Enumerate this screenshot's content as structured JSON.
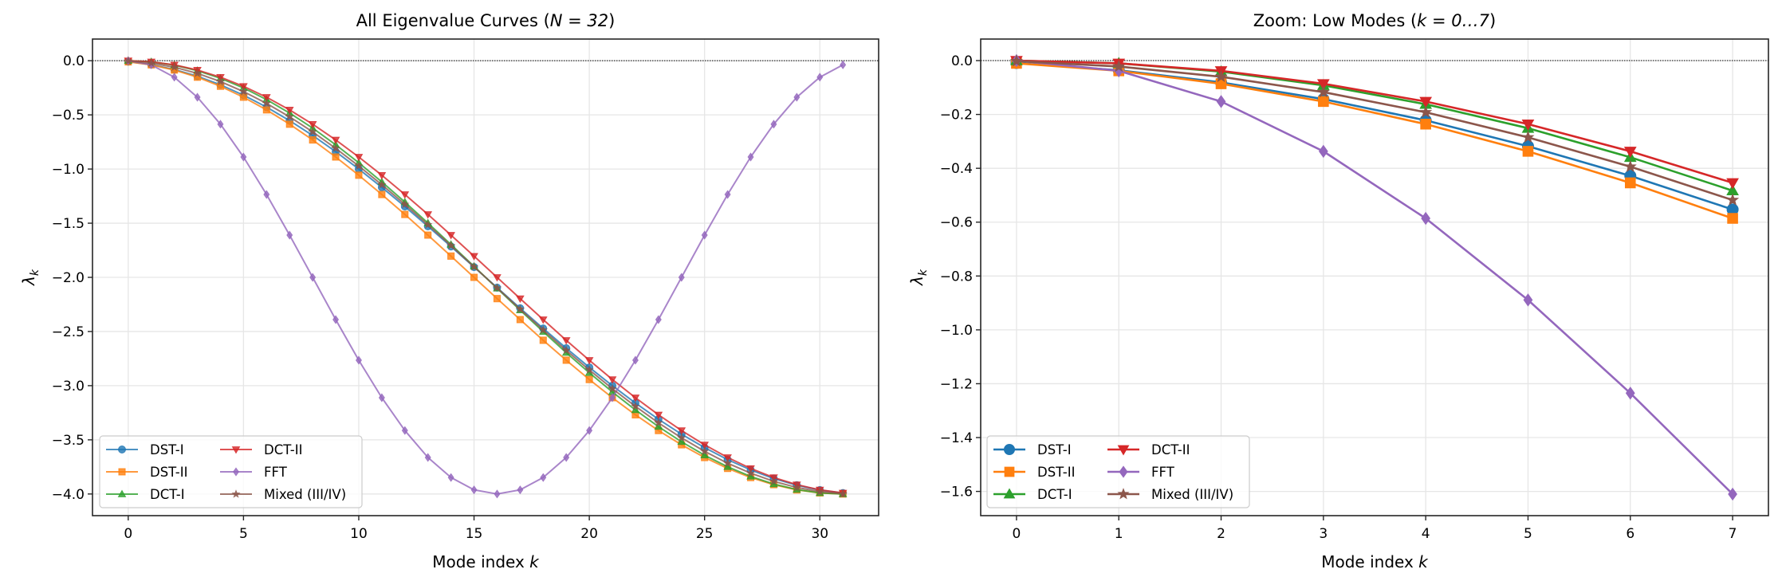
{
  "chart_data": [
    {
      "type": "line",
      "title_text": "All Eigenvalue Curves (",
      "title_math": "N = 32",
      "title_end": ")",
      "xlabel": "Mode index",
      "xlabel_var": "k",
      "ylabel": "λ",
      "ylabel_sub": "k",
      "xlim": [
        -1.55,
        32.55
      ],
      "ylim": [
        -4.2,
        0.2
      ],
      "xticks": [
        0,
        5,
        10,
        15,
        20,
        25,
        30
      ],
      "yticks": [
        0.0,
        -0.5,
        -1.0,
        -1.5,
        -2.0,
        -2.5,
        -3.0,
        -3.5,
        -4.0
      ],
      "grid": true,
      "reference_line_y": 0,
      "legend_position": "lower-left",
      "legend_columns": 2,
      "x": [
        0,
        1,
        2,
        3,
        4,
        5,
        6,
        7,
        8,
        9,
        10,
        11,
        12,
        13,
        14,
        15,
        16,
        17,
        18,
        19,
        20,
        21,
        22,
        23,
        24,
        25,
        26,
        27,
        28,
        29,
        30,
        31
      ],
      "series": [
        {
          "name": "DST-I",
          "color": "#1f77b4",
          "marker": "circle",
          "values": [
            -0.009,
            -0.036,
            -0.081,
            -0.143,
            -0.222,
            -0.318,
            -0.428,
            -0.553,
            -0.69,
            -0.84,
            -1.0,
            -1.169,
            -1.346,
            -1.529,
            -1.715,
            -1.905,
            -2.095,
            -2.285,
            -2.472,
            -2.654,
            -2.831,
            -3.0,
            -3.16,
            -3.31,
            -3.448,
            -3.572,
            -3.683,
            -3.778,
            -3.857,
            -3.919,
            -3.964,
            -3.991
          ]
        },
        {
          "name": "DST-II",
          "color": "#ff7f0e",
          "marker": "square",
          "values": [
            -0.01,
            -0.038,
            -0.086,
            -0.152,
            -0.236,
            -0.337,
            -0.454,
            -0.586,
            -0.731,
            -0.889,
            -1.057,
            -1.235,
            -1.419,
            -1.61,
            -1.804,
            -2.0,
            -2.196,
            -2.39,
            -2.581,
            -2.765,
            -2.943,
            -3.111,
            -3.269,
            -3.414,
            -3.546,
            -3.663,
            -3.764,
            -3.848,
            -3.914,
            -3.962,
            -3.99,
            -4.0
          ]
        },
        {
          "name": "DCT-I",
          "color": "#2ca02c",
          "marker": "triangle-up",
          "values": [
            0.0,
            -0.01,
            -0.041,
            -0.092,
            -0.162,
            -0.251,
            -0.359,
            -0.483,
            -0.622,
            -0.776,
            -0.942,
            -1.119,
            -1.305,
            -1.499,
            -1.697,
            -1.899,
            -2.101,
            -2.303,
            -2.501,
            -2.695,
            -2.881,
            -3.058,
            -3.224,
            -3.378,
            -3.518,
            -3.642,
            -3.749,
            -3.838,
            -3.908,
            -3.959,
            -3.99,
            -4.0
          ]
        },
        {
          "name": "DCT-II",
          "color": "#d62728",
          "marker": "triangle-down",
          "values": [
            0.0,
            -0.01,
            -0.038,
            -0.086,
            -0.152,
            -0.236,
            -0.337,
            -0.454,
            -0.586,
            -0.731,
            -0.889,
            -1.057,
            -1.235,
            -1.419,
            -1.61,
            -1.804,
            -2.0,
            -2.196,
            -2.39,
            -2.581,
            -2.765,
            -2.943,
            -3.111,
            -3.269,
            -3.414,
            -3.546,
            -3.663,
            -3.764,
            -3.848,
            -3.914,
            -3.962,
            -3.99
          ]
        },
        {
          "name": "FFT",
          "color": "#9467bd",
          "marker": "diamond",
          "values": [
            0.0,
            -0.038,
            -0.152,
            -0.337,
            -0.586,
            -0.889,
            -1.235,
            -1.61,
            -2.0,
            -2.39,
            -2.765,
            -3.111,
            -3.414,
            -3.663,
            -3.848,
            -3.962,
            -4.0,
            -3.962,
            -3.848,
            -3.663,
            -3.414,
            -3.111,
            -2.765,
            -2.39,
            -2.0,
            -1.61,
            -1.235,
            -0.889,
            -0.586,
            -0.337,
            -0.152,
            -0.038
          ]
        },
        {
          "name": "Mixed (III/IV)",
          "color": "#8c564b",
          "marker": "star",
          "values": [
            -0.002,
            -0.022,
            -0.06,
            -0.117,
            -0.192,
            -0.285,
            -0.394,
            -0.518,
            -0.657,
            -0.809,
            -0.972,
            -1.145,
            -1.326,
            -1.514,
            -1.707,
            -1.902,
            -2.098,
            -2.294,
            -2.486,
            -2.674,
            -2.855,
            -3.028,
            -3.191,
            -3.343,
            -3.482,
            -3.606,
            -3.716,
            -3.808,
            -3.883,
            -3.94,
            -3.978,
            -3.998
          ]
        }
      ]
    },
    {
      "type": "line",
      "title_text": "Zoom: Low Modes (",
      "title_math": "k = 0…7",
      "title_end": ")",
      "xlabel": "Mode index",
      "xlabel_var": "k",
      "ylabel": "λ",
      "ylabel_sub": "k",
      "xlim": [
        -0.35,
        7.35
      ],
      "ylim": [
        -1.69,
        0.08
      ],
      "xticks": [
        0,
        1,
        2,
        3,
        4,
        5,
        6,
        7
      ],
      "yticks": [
        0.0,
        -0.2,
        -0.4,
        -0.6,
        -0.8,
        -1.0,
        -1.2,
        -1.4,
        -1.6
      ],
      "grid": true,
      "reference_line_y": 0,
      "legend_position": "lower-left",
      "legend_columns": 2,
      "x": [
        0,
        1,
        2,
        3,
        4,
        5,
        6,
        7
      ],
      "series": [
        {
          "name": "DST-I",
          "color": "#1f77b4",
          "marker": "circle",
          "values": [
            -0.009,
            -0.036,
            -0.081,
            -0.143,
            -0.222,
            -0.318,
            -0.428,
            -0.553
          ]
        },
        {
          "name": "DST-II",
          "color": "#ff7f0e",
          "marker": "square",
          "values": [
            -0.01,
            -0.038,
            -0.086,
            -0.152,
            -0.236,
            -0.337,
            -0.454,
            -0.586
          ]
        },
        {
          "name": "DCT-I",
          "color": "#2ca02c",
          "marker": "triangle-up",
          "values": [
            0.0,
            -0.01,
            -0.041,
            -0.092,
            -0.162,
            -0.251,
            -0.359,
            -0.483
          ]
        },
        {
          "name": "DCT-II",
          "color": "#d62728",
          "marker": "triangle-down",
          "values": [
            0.0,
            -0.01,
            -0.038,
            -0.086,
            -0.152,
            -0.236,
            -0.337,
            -0.454
          ]
        },
        {
          "name": "FFT",
          "color": "#9467bd",
          "marker": "diamond",
          "values": [
            0.0,
            -0.038,
            -0.152,
            -0.337,
            -0.586,
            -0.889,
            -1.235,
            -1.61
          ]
        },
        {
          "name": "Mixed (III/IV)",
          "color": "#8c564b",
          "marker": "star",
          "values": [
            -0.002,
            -0.022,
            -0.06,
            -0.117,
            -0.192,
            -0.285,
            -0.394,
            -0.518
          ]
        }
      ]
    }
  ]
}
